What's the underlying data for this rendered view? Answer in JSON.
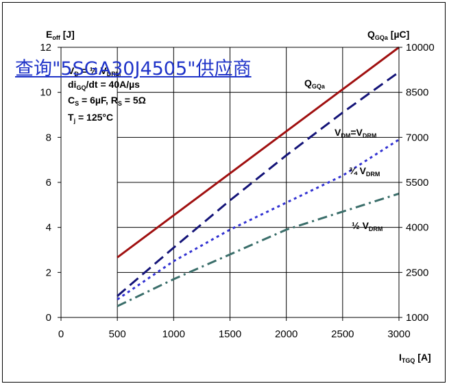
{
  "watermark_link": "查询\"5SGA30J4505\"供应商",
  "chart_data": {
    "type": "line",
    "x_axis": {
      "label": "I",
      "label_sub": "TGQ",
      "label_unit": " [A]",
      "ticks": [
        0,
        500,
        1000,
        1500,
        2000,
        2500,
        3000
      ],
      "range": [
        0,
        3000
      ],
      "plot_start": 500
    },
    "y_left": {
      "label": "E",
      "label_sub": "off",
      "label_unit": " [J]",
      "ticks": [
        0,
        2,
        4,
        6,
        8,
        10,
        12
      ],
      "range": [
        0,
        12
      ]
    },
    "y_right": {
      "label": "Q",
      "label_sub": "GQa",
      "label_unit": " [µC]",
      "ticks": [
        1000,
        2500,
        4000,
        5500,
        7000,
        8500,
        10000
      ],
      "range": [
        1000,
        10000
      ]
    },
    "grid": true,
    "conditions": [
      {
        "main": "V",
        "sub": "D",
        "tail": " = ½ V",
        "sub2": "DRM"
      },
      {
        "main": "di",
        "sub": "GQ",
        "tail": "/dt = 40A/µs",
        "sub2": ""
      },
      {
        "main": "C",
        "sub": "S",
        "tail": " = 6µF, R",
        "sub2": "S",
        "tail2": " = 5Ω"
      },
      {
        "main": "T",
        "sub": "j",
        "tail": " = 125°C",
        "sub2": ""
      }
    ],
    "series": [
      {
        "name_main": "Q",
        "name_sub": "GQa",
        "axis": "right",
        "color": "#a01010",
        "dash": "solid",
        "x": [
          500,
          3000
        ],
        "y": [
          3000,
          10000
        ]
      },
      {
        "name_main": "V",
        "name_sub": "DM",
        "name_mid": "=V",
        "name_sub2": "DRM",
        "axis": "left",
        "color": "#141478",
        "dash": "long",
        "x": [
          500,
          1000,
          1500,
          2000,
          2500,
          3000
        ],
        "y": [
          0.95,
          3.1,
          5.2,
          7.2,
          9.1,
          10.9
        ]
      },
      {
        "name_main": "¾ V",
        "name_sub": "DRM",
        "axis": "left",
        "color": "#3232d2",
        "dash": "dot",
        "x": [
          500,
          1000,
          1500,
          2000,
          2500,
          3000
        ],
        "y": [
          0.8,
          2.5,
          3.9,
          5.1,
          6.3,
          7.9
        ]
      },
      {
        "name_main": "½ V",
        "name_sub": "DRM",
        "axis": "left",
        "color": "#3a6e6a",
        "dash": "dashdot",
        "x": [
          500,
          1000,
          1500,
          2000,
          2500,
          3000
        ],
        "y": [
          0.5,
          1.7,
          2.8,
          3.9,
          4.7,
          5.5
        ]
      }
    ]
  }
}
